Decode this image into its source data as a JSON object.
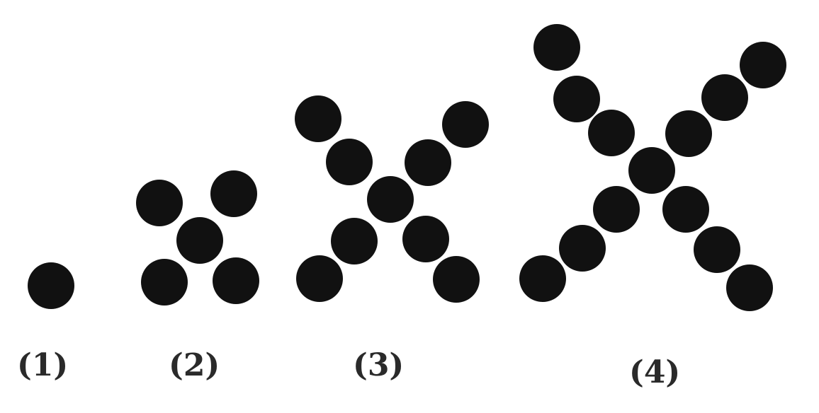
{
  "dot_color": "#111111",
  "figures": [
    {
      "label": "(1)",
      "dot_count": 1
    },
    {
      "label": "(2)",
      "dot_count": 5
    },
    {
      "label": "(3)",
      "dot_count": 9
    },
    {
      "label": "(4)",
      "dot_count": 13
    }
  ]
}
